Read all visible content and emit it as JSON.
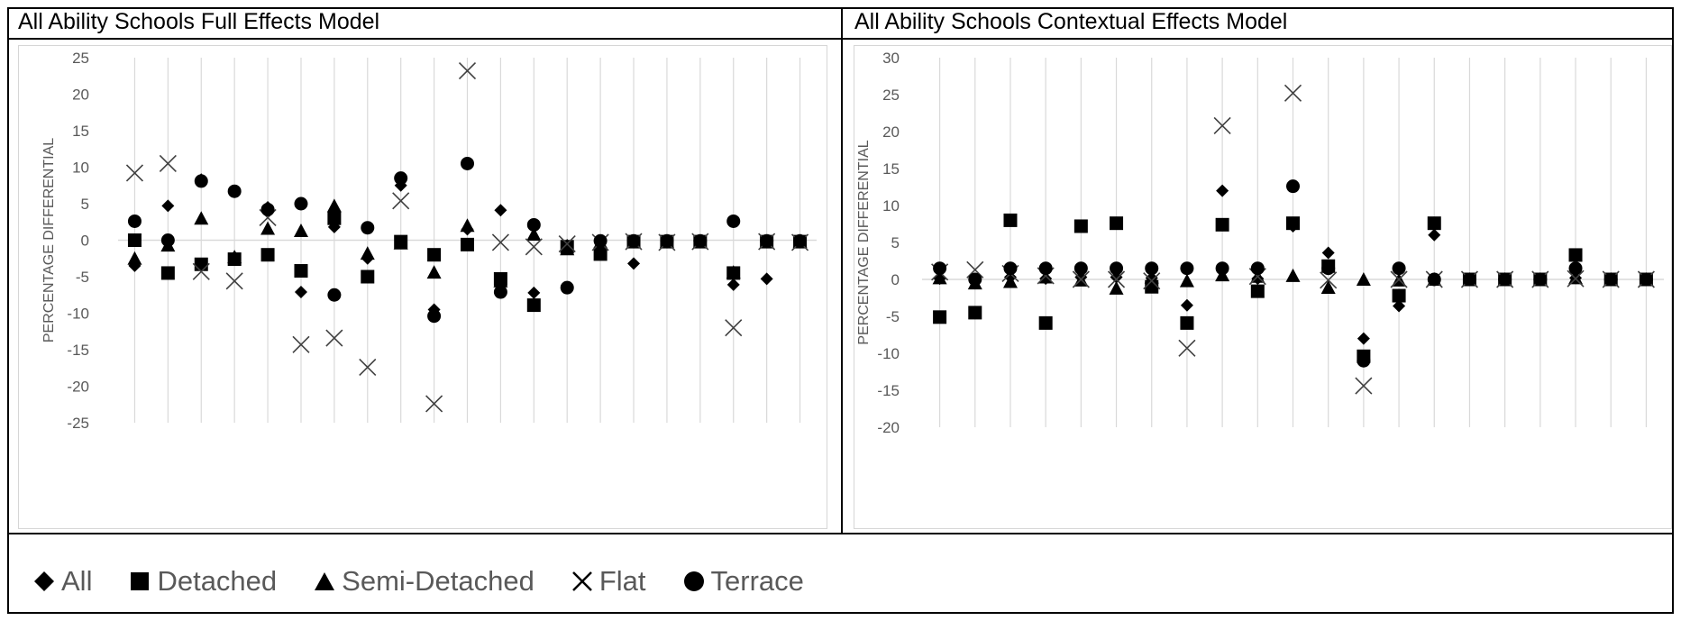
{
  "legend": {
    "items": [
      {
        "label": "All",
        "marker": "diamond"
      },
      {
        "label": "Detached",
        "marker": "square"
      },
      {
        "label": "Semi-Detached",
        "marker": "triangle"
      },
      {
        "label": "Flat",
        "marker": "x"
      },
      {
        "label": "Terrace",
        "marker": "circle"
      }
    ]
  },
  "colors": {
    "marker": "#000000",
    "flat": "#404040",
    "grid": "#d9d9d9",
    "axis_text": "#595959"
  },
  "chart_data": [
    {
      "type": "scatter",
      "title": "All Ability Schools Full Effects Model",
      "xlabel": "",
      "ylabel": "PERCENTAGE DIFFERENTIAL",
      "ylim": [
        -25,
        25
      ],
      "yticks": [
        25,
        20,
        15,
        10,
        5,
        0,
        -5,
        -10,
        -15,
        -20,
        -25
      ],
      "n_categories": 21,
      "grid": "vertical",
      "series": [
        {
          "name": "All",
          "marker": "diamond",
          "values": [
            -3.5,
            4.7,
            8.3,
            -2.3,
            4.5,
            -7.1,
            1.8,
            -2.5,
            7.5,
            -9.5,
            1.5,
            4.1,
            -7.2,
            -0.7,
            -0.2,
            -3.2,
            -0.2,
            -0.2,
            -6.1,
            -5.3,
            -0.2
          ]
        },
        {
          "name": "Detached",
          "marker": "square",
          "values": [
            0.0,
            -4.5,
            -3.3,
            -2.6,
            -2.0,
            -4.2,
            3.0,
            -5.0,
            -0.2,
            -2.0,
            -0.6,
            -5.3,
            -8.9,
            -0.9,
            -1.9,
            -0.2,
            -0.2,
            -0.2,
            -4.5,
            -0.2,
            -0.2
          ]
        },
        {
          "name": "Semi-Detached",
          "marker": "triangle",
          "values": [
            -2.5,
            -0.7,
            3.0,
            -2.3,
            1.6,
            1.3,
            4.7,
            -1.8,
            -0.4,
            -4.4,
            2.0,
            -5.6,
            0.8,
            -1.2,
            -0.3,
            -0.2,
            -0.2,
            -0.2,
            -4.4,
            -0.2,
            -0.2
          ]
        },
        {
          "name": "Flat",
          "marker": "x",
          "values": [
            9.2,
            10.5,
            -4.3,
            -5.6,
            3.1,
            -14.3,
            -13.4,
            -17.4,
            5.4,
            -22.4,
            23.2,
            -0.3,
            -0.9,
            -0.5,
            -0.3,
            -0.2,
            -0.3,
            -0.2,
            -12.0,
            -0.2,
            -0.3
          ]
        },
        {
          "name": "Terrace",
          "marker": "circle",
          "values": [
            2.6,
            0.0,
            8.1,
            6.7,
            4.2,
            5.0,
            -7.5,
            1.7,
            8.5,
            -10.4,
            10.5,
            -7.1,
            2.1,
            -6.5,
            -0.1,
            -0.1,
            -0.1,
            -0.1,
            2.6,
            -0.1,
            -0.1
          ]
        }
      ]
    },
    {
      "type": "scatter",
      "title": "All Ability Schools Contextual Effects Model",
      "xlabel": "",
      "ylabel": "PERCENTAGE DIFFERENTIAL",
      "ylim": [
        -20,
        30
      ],
      "yticks": [
        30,
        25,
        20,
        15,
        10,
        5,
        0,
        -5,
        -10,
        -15,
        -20
      ],
      "n_categories": 21,
      "grid": "vertical",
      "series": [
        {
          "name": "All",
          "marker": "diamond",
          "values": [
            0.1,
            0.0,
            0.3,
            0.1,
            0.3,
            0.3,
            0.2,
            -3.5,
            12.0,
            0.1,
            7.2,
            3.6,
            -8.0,
            -3.6,
            6.0,
            0.0,
            0.0,
            0.0,
            0.2,
            0.0,
            0.0
          ]
        },
        {
          "name": "Detached",
          "marker": "square",
          "values": [
            -5.1,
            -4.5,
            8.0,
            -5.9,
            7.2,
            7.6,
            -1.0,
            -5.9,
            7.4,
            -1.6,
            7.6,
            1.8,
            -10.4,
            -2.2,
            7.6,
            0.0,
            0.0,
            0.0,
            3.3,
            0.0,
            0.0
          ]
        },
        {
          "name": "Semi-Detached",
          "marker": "triangle",
          "values": [
            0.2,
            -0.5,
            -0.3,
            0.3,
            -0.1,
            -1.2,
            0.3,
            -0.2,
            0.6,
            0.4,
            0.5,
            -1.1,
            0.0,
            -0.1,
            0.0,
            0.0,
            0.0,
            0.0,
            0.2,
            0.0,
            0.0
          ]
        },
        {
          "name": "Flat",
          "marker": "x",
          "values": [
            1.0,
            1.3,
            0.8,
            0.5,
            0.0,
            0.0,
            -0.2,
            -9.3,
            20.8,
            0.4,
            25.2,
            -0.1,
            -14.4,
            0.0,
            0.0,
            0.0,
            0.0,
            0.0,
            0.1,
            0.0,
            0.0
          ]
        },
        {
          "name": "Terrace",
          "marker": "circle",
          "values": [
            1.5,
            0.0,
            1.5,
            1.5,
            1.5,
            1.5,
            1.5,
            1.5,
            1.5,
            1.5,
            12.6,
            1.5,
            -11.0,
            1.5,
            0.0,
            0.0,
            0.0,
            0.0,
            1.5,
            0.0,
            0.0
          ]
        }
      ]
    }
  ]
}
